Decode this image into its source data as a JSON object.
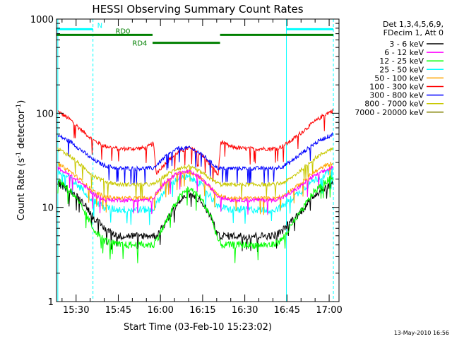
{
  "footer_timestamp": "13-May-2010 16:56",
  "chart_data": {
    "type": "line",
    "title": "HESSI Observing Summary Count Rates",
    "xlabel": "Start Time (03-Feb-10 15:23:02)",
    "ylabel_main": "Count Rate (s",
    "ylabel_sup1": "-1",
    "ylabel_mid": " detector",
    "ylabel_sup2": "-1",
    "ylabel_end": ")",
    "y_scale": "log",
    "ylim": [
      1,
      1000
    ],
    "xlim_minutes": [
      923.03,
      1023.5
    ],
    "x_ticks": [
      {
        "label": "15:30",
        "minutes": 930
      },
      {
        "label": "15:45",
        "minutes": 945
      },
      {
        "label": "16:00",
        "minutes": 960
      },
      {
        "label": "16:15",
        "minutes": 975
      },
      {
        "label": "16:30",
        "minutes": 990
      },
      {
        "label": "16:45",
        "minutes": 1005
      },
      {
        "label": "17:00",
        "minutes": 1020
      }
    ],
    "y_ticks": [
      {
        "label": "1",
        "value": 1
      },
      {
        "label": "10",
        "value": 10
      },
      {
        "label": "100",
        "value": 100
      },
      {
        "label": "1000",
        "value": 1000
      }
    ],
    "legend_placement": "right",
    "legend_header": [
      "Det 1,3,4,5,6,9,",
      "FDecim 1, Att 0"
    ],
    "series": [
      {
        "name": "3 - 6 keV",
        "color": "#000000",
        "x": [
          923.5,
          928,
          933,
          936,
          940,
          945,
          950,
          955,
          957.5,
          958.5,
          962,
          966,
          970,
          974,
          978,
          980.5,
          981.5,
          985,
          990,
          995,
          1000,
          1003,
          1006,
          1010,
          1014,
          1018,
          1021.5
        ],
        "y": [
          18,
          15,
          11,
          8,
          6,
          5,
          5,
          5,
          5,
          5,
          7,
          11,
          14,
          12,
          8,
          5,
          5,
          5,
          5,
          5,
          5,
          5.5,
          7,
          9,
          13,
          16,
          18
        ]
      },
      {
        "name": "6 - 12 keV",
        "color": "#ff00ff",
        "x": [
          923.5,
          928,
          933,
          936,
          940,
          945,
          950,
          955,
          957.5,
          958.5,
          962,
          966,
          970,
          974,
          978,
          980.5,
          981.5,
          985,
          990,
          995,
          1000,
          1003,
          1006,
          1010,
          1014,
          1018,
          1021.5
        ],
        "y": [
          26,
          22,
          17,
          14,
          12,
          12,
          12,
          12,
          12,
          14,
          19,
          23,
          24,
          21,
          16,
          13,
          13,
          12,
          12,
          12,
          12,
          12.5,
          14,
          17,
          21,
          24,
          27
        ]
      },
      {
        "name": "12 - 25 keV",
        "color": "#00ff00",
        "x": [
          923.5,
          928,
          933,
          936,
          940,
          945,
          950,
          955,
          957.5,
          958.5,
          962,
          966,
          970,
          974,
          978,
          980.5,
          981.5,
          985,
          990,
          995,
          1000,
          1003,
          1006,
          1010,
          1014,
          1018,
          1021.5
        ],
        "y": [
          20,
          15,
          9,
          6,
          4.5,
          4,
          4,
          4,
          4,
          4.5,
          7,
          12,
          16,
          13,
          8,
          4.5,
          4,
          4,
          4,
          4,
          4,
          4.5,
          6,
          9,
          14,
          18,
          21
        ]
      },
      {
        "name": "25 - 50 keV",
        "color": "#00ffff",
        "x": [
          923.5,
          928,
          933,
          936,
          940,
          945,
          950,
          955,
          957.5,
          958.5,
          962,
          966,
          970,
          974,
          978,
          980.5,
          981.5,
          985,
          990,
          995,
          1000,
          1003,
          1006,
          1010,
          1014,
          1018,
          1021.5
        ],
        "y": [
          24,
          20,
          15,
          12,
          10,
          9.5,
          9.5,
          9.5,
          9.5,
          11,
          16,
          20,
          21,
          18,
          13,
          10,
          10,
          9.5,
          9.5,
          9.5,
          9.5,
          10,
          12,
          15,
          19,
          22,
          25
        ]
      },
      {
        "name": "50 - 100 keV",
        "color": "#ffa500",
        "x": [
          923.5,
          928,
          933,
          936,
          940,
          945,
          950,
          955,
          957.5,
          958.5,
          962,
          966,
          970,
          974,
          978,
          980.5,
          981.5,
          985,
          990,
          995,
          1000,
          1003,
          1006,
          1010,
          1014,
          1018,
          1021.5
        ],
        "y": [
          29,
          24,
          18,
          15,
          13,
          12.5,
          12.5,
          12.5,
          12.5,
          14,
          19,
          23,
          24,
          21,
          16,
          13.5,
          13,
          12.5,
          12.5,
          12.5,
          12.5,
          13,
          15,
          18,
          23,
          27,
          30
        ]
      },
      {
        "name": "100 - 300 keV",
        "color": "#ff0000",
        "x": [
          923.5,
          928,
          933,
          936,
          940,
          945,
          950,
          955,
          957.5,
          958.5,
          962,
          966,
          970,
          974,
          978,
          980.5,
          981.5,
          985,
          990,
          995,
          1000,
          1003,
          1006,
          1010,
          1014,
          1018,
          1021.5
        ],
        "y": [
          105,
          85,
          62,
          52,
          45,
          42,
          42,
          43,
          48,
          23,
          30,
          38,
          43,
          38,
          28,
          22,
          50,
          44,
          42,
          42,
          42,
          44,
          50,
          62,
          78,
          95,
          108
        ]
      },
      {
        "name": "300 - 800 keV",
        "color": "#0000ff",
        "x": [
          923.5,
          928,
          933,
          936,
          940,
          945,
          950,
          955,
          957.5,
          958.5,
          962,
          966,
          970,
          974,
          978,
          980.5,
          981.5,
          985,
          990,
          995,
          1000,
          1003,
          1006,
          1010,
          1014,
          1018,
          1021.5
        ],
        "y": [
          58,
          50,
          38,
          32,
          28,
          26,
          26,
          26,
          26,
          28,
          35,
          42,
          43,
          38,
          30,
          26,
          26,
          26,
          26,
          26,
          26,
          27,
          30,
          37,
          46,
          54,
          60
        ]
      },
      {
        "name": "800 - 7000 keV",
        "color": "#c8c800",
        "x": [
          923.5,
          928,
          933,
          936,
          940,
          945,
          950,
          955,
          957.5,
          958.5,
          962,
          966,
          970,
          974,
          978,
          980.5,
          981.5,
          985,
          990,
          995,
          1000,
          1003,
          1006,
          1010,
          1014,
          1018,
          1021.5
        ],
        "y": [
          42,
          35,
          26,
          22,
          19,
          17.5,
          17.5,
          17.5,
          17.5,
          18.5,
          22,
          26,
          27,
          24,
          20,
          18,
          17.5,
          17.5,
          17.5,
          17.5,
          17.5,
          18,
          20,
          25,
          32,
          38,
          43
        ]
      },
      {
        "name": "7000 - 20000 keV",
        "color": "#808000",
        "x": [],
        "y": []
      }
    ],
    "annotations": {
      "bars": [
        {
          "label": "N",
          "color": "#00ffff",
          "y": 780,
          "segments": [
            [
              923.03,
              936
            ],
            [
              1004.8,
              1021.5
            ]
          ]
        },
        {
          "label": "RD0",
          "color": "#008000",
          "y": 680,
          "segments": [
            [
              923.03,
              957.2
            ],
            [
              981.2,
              1021.5
            ]
          ]
        },
        {
          "label": "RD4",
          "color": "#008000",
          "y": 560,
          "segments": [
            [
              957.2,
              981.2
            ]
          ]
        }
      ],
      "night_markers": [
        {
          "minutes": 923.5,
          "style": "solid"
        },
        {
          "minutes": 936.0,
          "style": "dashed"
        },
        {
          "minutes": 1004.8,
          "style": "solid"
        },
        {
          "minutes": 1021.5,
          "style": "dashed"
        }
      ],
      "marker_color": "#00ffff"
    }
  }
}
